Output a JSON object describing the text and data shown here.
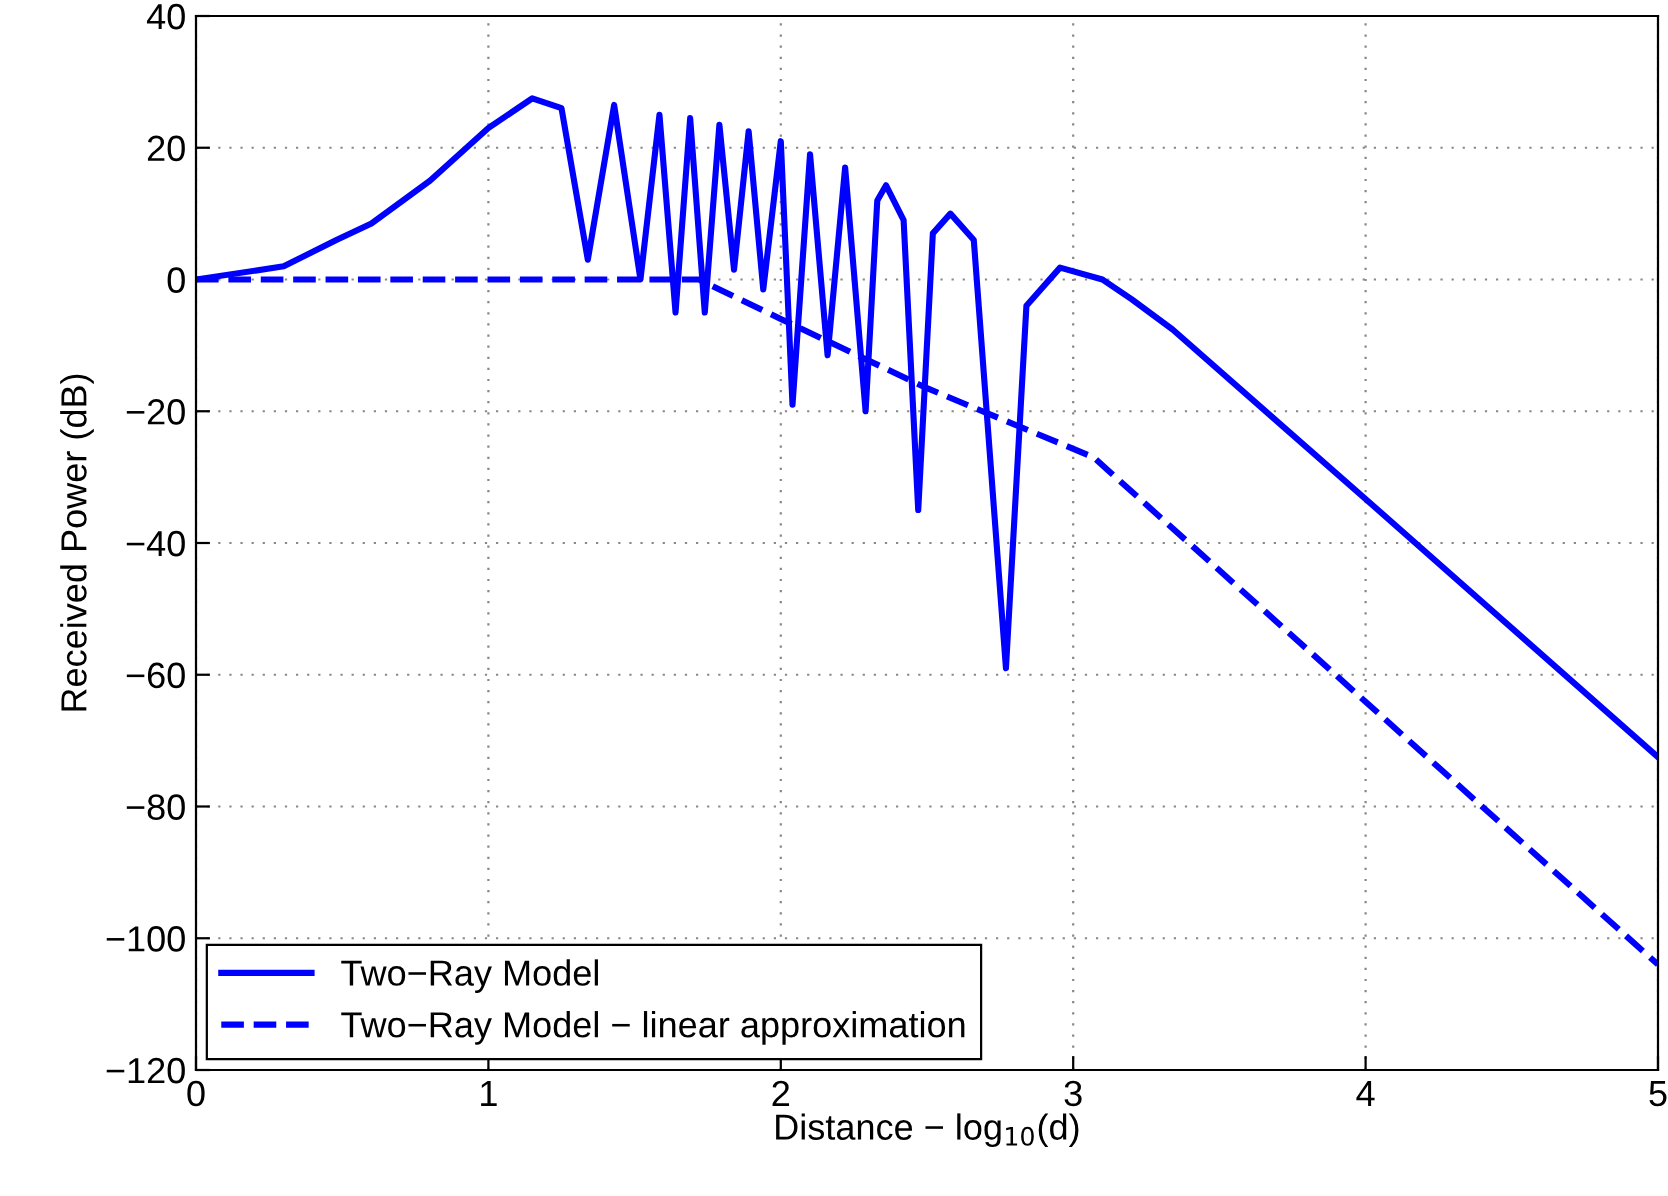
{
  "chart_data": {
    "type": "line",
    "xlabel": "Distance − log$_{10}$(d)",
    "ylabel": "Received Power (dB)",
    "xlim": [
      0,
      5
    ],
    "ylim": [
      -120,
      40
    ],
    "xticks": [
      0,
      1,
      2,
      3,
      4,
      5
    ],
    "yticks": [
      -120,
      -100,
      -80,
      -60,
      -40,
      -20,
      0,
      20,
      40
    ],
    "grid": true,
    "legend": "bottom left",
    "marker": "none",
    "series": [
      {
        "name": "Two−Ray Model",
        "color": "#0000ff",
        "line_style": "solid",
        "x": [
          0,
          0.3,
          0.48,
          0.6,
          0.8,
          1.0,
          1.15,
          1.25,
          1.34,
          1.43,
          1.52,
          1.585,
          1.64,
          1.69,
          1.74,
          1.79,
          1.84,
          1.89,
          1.94,
          2.0,
          2.04,
          2.1,
          2.16,
          2.22,
          2.29,
          2.33,
          2.36,
          2.42,
          2.47,
          2.52,
          2.58,
          2.66,
          2.77,
          2.84,
          2.955,
          3.1,
          3.2,
          3.34,
          4.03,
          5
        ],
        "values": [
          0,
          2,
          6,
          8.5,
          15,
          23,
          27.5,
          26,
          3,
          26.5,
          0,
          25,
          -5,
          24.5,
          -5,
          23.5,
          1.5,
          22.5,
          -1.5,
          21,
          -19,
          19,
          -11.5,
          17,
          -20,
          12,
          14.3,
          9,
          -35,
          7,
          10,
          6,
          -59,
          -4,
          1.8,
          0,
          -3,
          -7.6,
          -34.5,
          -72.5
        ]
      },
      {
        "name": "Two−Ray Model − linear approximation",
        "color": "#0000ff",
        "line_style": "dashed",
        "x": [
          0,
          1.72,
          2.0,
          2.5,
          3.07,
          5
        ],
        "values": [
          0,
          0,
          -6,
          -16.5,
          -27,
          -104
        ]
      }
    ]
  }
}
